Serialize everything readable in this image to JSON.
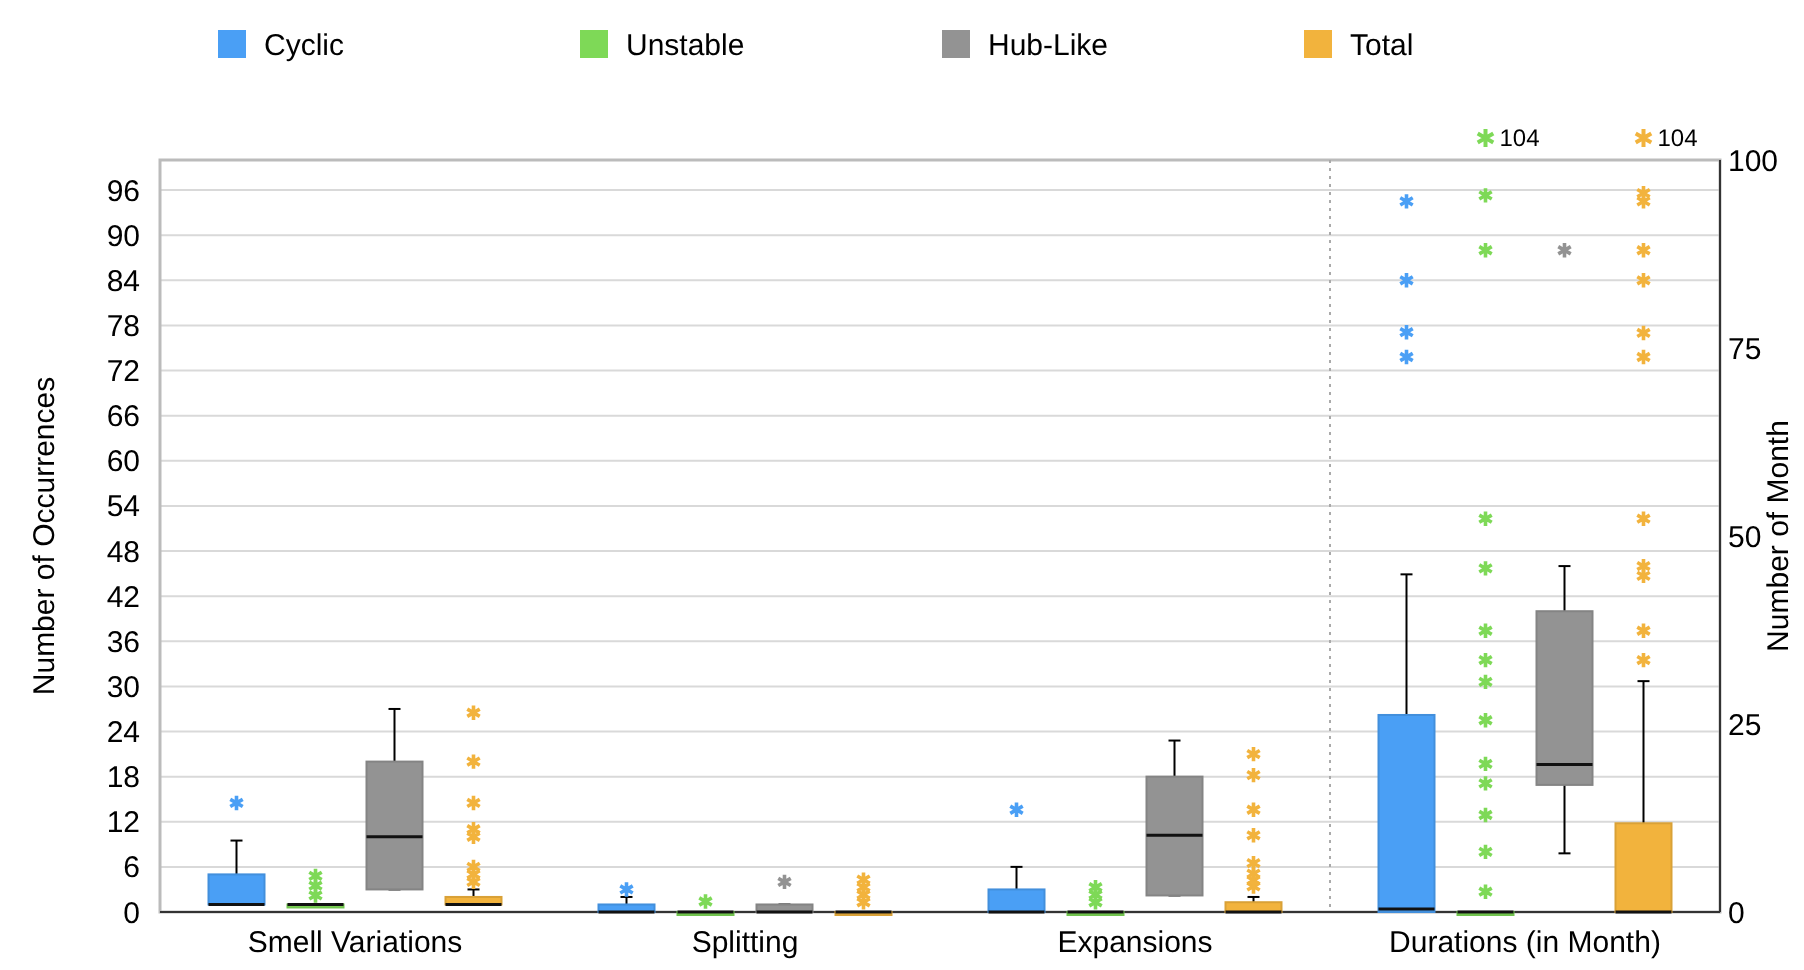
{
  "chart_data": {
    "type": "box",
    "categories": [
      "Smell Variations",
      "Splitting",
      "Expansions",
      "Durations (in Month)"
    ],
    "ylabel": "Number of Occurrences",
    "y2label": "Number of Month",
    "ylim": [
      0,
      100
    ],
    "yticks": [
      0,
      6,
      12,
      18,
      24,
      30,
      36,
      42,
      48,
      54,
      60,
      66,
      72,
      78,
      84,
      90,
      96
    ],
    "y2lim": [
      0,
      100
    ],
    "y2ticks": [
      0,
      25,
      50,
      75,
      100
    ],
    "grid": "y",
    "legend": "top",
    "marker": "star",
    "series": [
      {
        "name": "Cyclic",
        "color": "#4a9ff5",
        "boxes": [
          {
            "low": 1,
            "q1": 1,
            "median": 1,
            "q3": 5,
            "high": 9.5,
            "outliers": [
              14.5
            ]
          },
          {
            "low": 0,
            "q1": 0,
            "median": 0,
            "q3": 1,
            "high": 2,
            "outliers": [
              3
            ]
          },
          {
            "low": 0,
            "q1": 0,
            "median": 0,
            "q3": 3,
            "high": 6,
            "outliers": [
              13.6
            ]
          },
          null
        ]
      },
      {
        "name": "Unstable",
        "color": "#7ed957",
        "boxes": [
          {
            "low": 1,
            "q1": 1,
            "median": 1,
            "q3": 1,
            "high": 1,
            "outliers": [
              2.2,
              3.5,
              4.8
            ]
          },
          {
            "low": 0,
            "q1": 0,
            "median": 0,
            "q3": 0,
            "high": 0,
            "outliers": [
              1.4
            ]
          },
          {
            "low": 0,
            "q1": 0,
            "median": 0,
            "q3": 0,
            "high": 0,
            "outliers": [
              1.3,
              2.3,
              3.3
            ]
          },
          null
        ]
      },
      {
        "name": "Hub-Like",
        "color": "#939393",
        "boxes": [
          {
            "low": 3,
            "q1": 3,
            "median": 10,
            "q3": 20,
            "high": 27
          },
          {
            "low": 0,
            "q1": 0,
            "median": 0,
            "q3": 1,
            "high": 1,
            "outliers": [
              4
            ]
          },
          {
            "low": 2.2,
            "q1": 2.2,
            "median": 10.2,
            "q3": 18,
            "high": 22.8
          },
          null
        ]
      },
      {
        "name": "Total",
        "color": "#f2b33d",
        "boxes": [
          {
            "low": 1,
            "q1": 1,
            "median": 1,
            "q3": 2,
            "high": 3,
            "outliers": [
              4,
              5,
              6,
              10,
              11,
              14.5,
              20,
              26.5
            ]
          },
          {
            "low": 0,
            "q1": 0,
            "median": 0,
            "q3": 0,
            "high": 0,
            "outliers": [
              1.3,
              2.3,
              3.3,
              4.3
            ]
          },
          {
            "low": 0,
            "q1": 0,
            "median": 0,
            "q3": 1.3,
            "high": 2,
            "outliers": [
              3.4,
              4.2,
              5.1,
              6.5,
              10.2,
              13.6,
              18.2,
              21
            ]
          },
          null
        ]
      },
      {
        "color": "#4a9ff5",
        "axis": "y2",
        "boxes": [
          null,
          null,
          null,
          {
            "low": 0,
            "q1": 0,
            "median": 0.4,
            "q3": 26.2,
            "high": 44.9,
            "outliers": [
              73.8,
              77.1,
              84,
              94.5
            ]
          }
        ]
      },
      {
        "color": "#7ed957",
        "axis": "y2",
        "boxes": [
          null,
          null,
          null,
          {
            "low": 0,
            "q1": 0,
            "median": 0,
            "q3": 0,
            "high": 0,
            "outliers": [
              2.7,
              8,
              12.9,
              17.1,
              19.7,
              25.5,
              30.6,
              33.5,
              37.4,
              45.7,
              52.3,
              88,
              95.3
            ]
          }
        ]
      },
      {
        "color": "#939393",
        "axis": "y2",
        "boxes": [
          null,
          null,
          null,
          {
            "low": 7.8,
            "q1": 16.9,
            "median": 19.6,
            "q3": 40,
            "high": 46,
            "outliers": [
              88
            ]
          }
        ]
      },
      {
        "color": "#f2b33d",
        "axis": "y2",
        "boxes": [
          null,
          null,
          null,
          {
            "low": 0,
            "q1": 0,
            "median": 0,
            "q3": 11.8,
            "high": 30.7,
            "outliers": [
              33.5,
              37.4,
              44.7,
              46,
              52.3,
              73.8,
              77,
              84,
              88,
              94.5,
              95.6
            ]
          }
        ]
      }
    ],
    "annotations": [
      "104",
      "104"
    ]
  }
}
